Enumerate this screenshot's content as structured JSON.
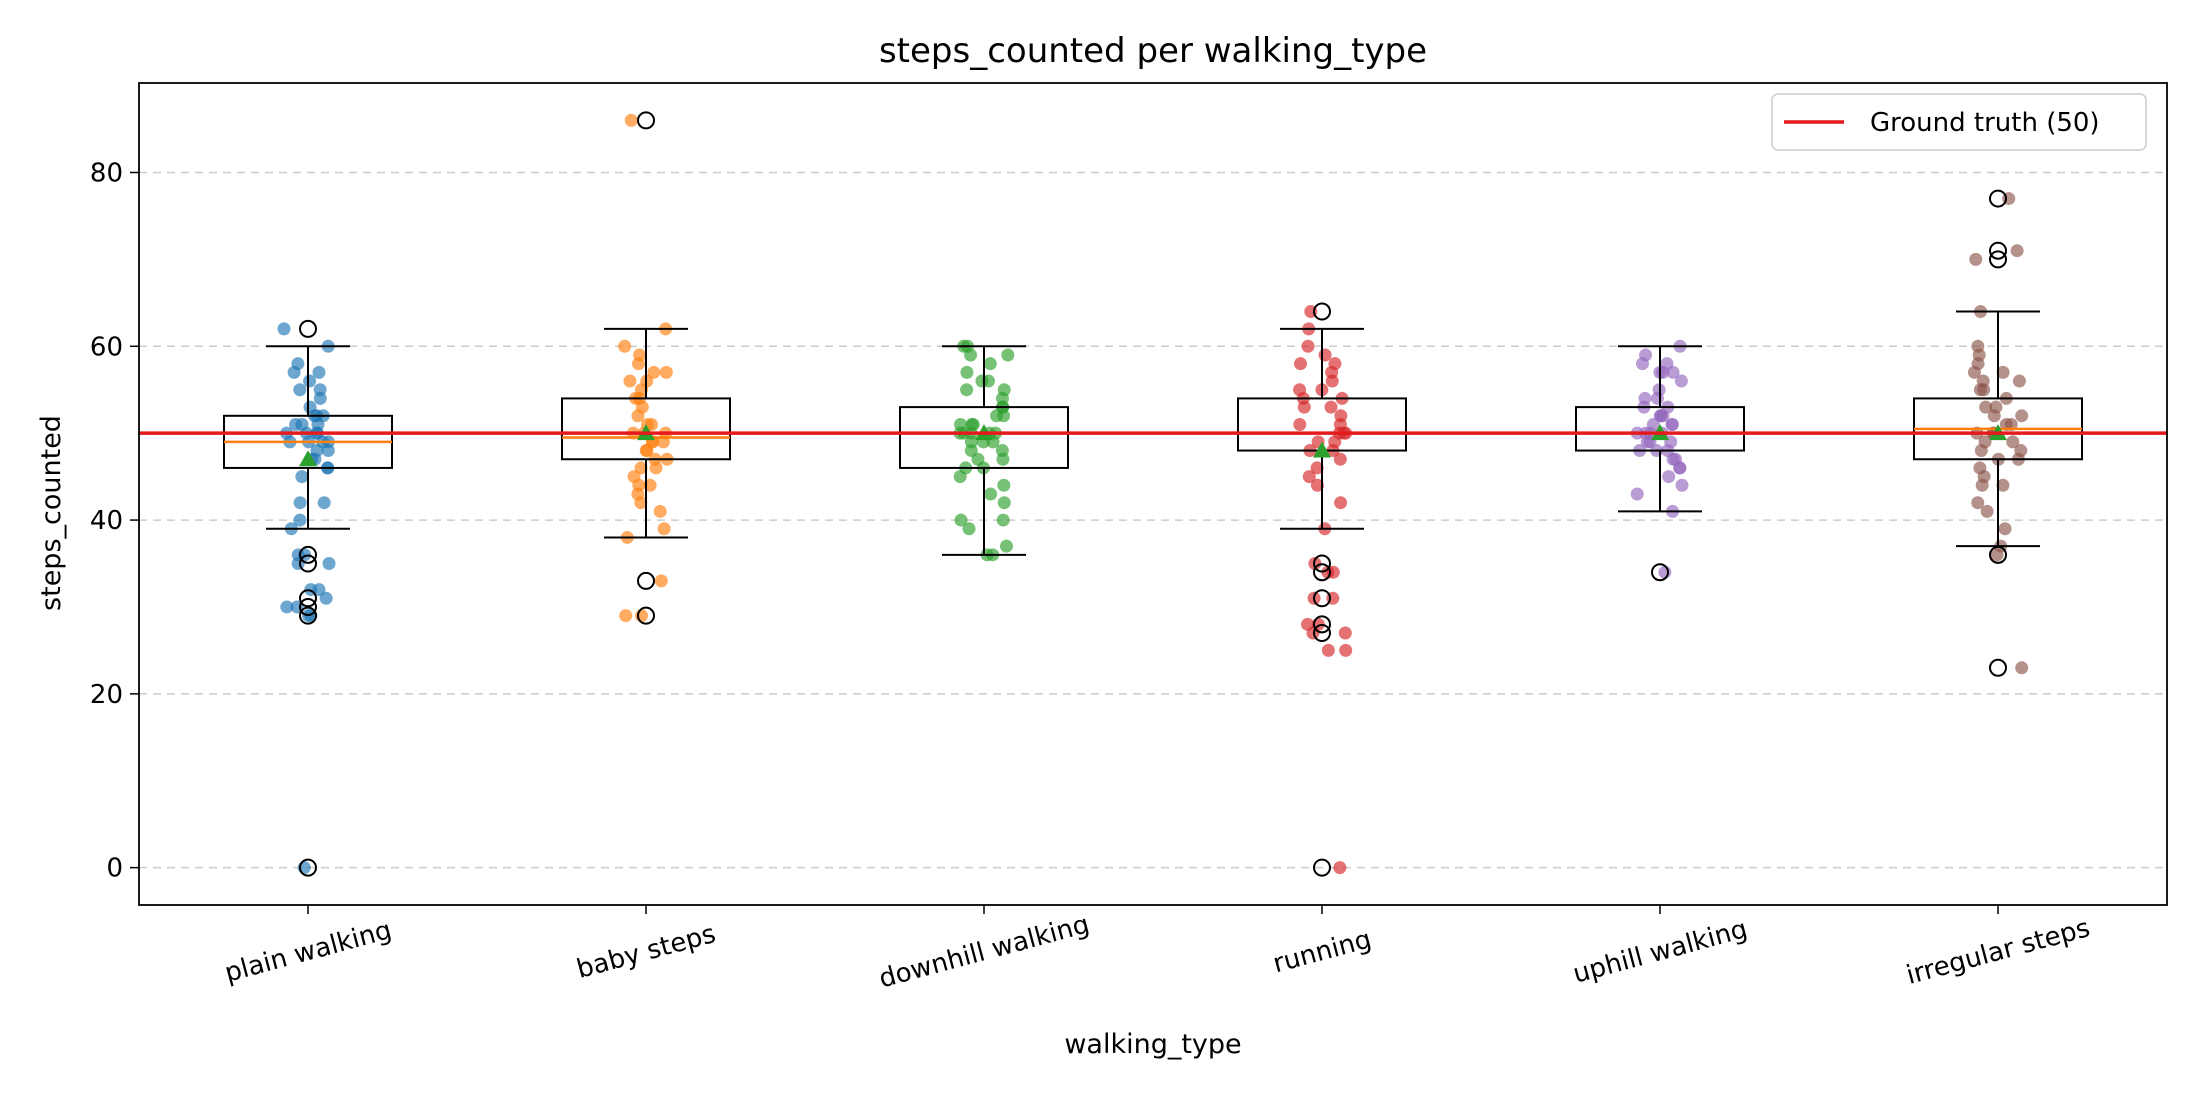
{
  "chart_data": {
    "type": "box",
    "title": "steps_counted per walking_type",
    "xlabel": "walking_type",
    "ylabel": "steps_counted",
    "ylim": [
      -4.3,
      90.3
    ],
    "yticks": [
      0,
      20,
      40,
      60,
      80
    ],
    "grid": "y-dashed",
    "legend_position": "top-right",
    "reference_line": {
      "label": "Ground truth (50)",
      "value": 50,
      "color": "#e41a1c"
    },
    "categories": [
      "plain walking",
      "baby steps",
      "downhill walking",
      "running",
      "uphill walking",
      "irregular steps"
    ],
    "colors": [
      "#1f77b4",
      "#ff7f0e",
      "#2ca02c",
      "#d62728",
      "#9467bd",
      "#8c564b"
    ],
    "boxes": [
      {
        "name": "plain walking",
        "q1": 46,
        "median": 49,
        "q3": 52,
        "whisker_low": 39,
        "whisker_high": 60,
        "mean": 47,
        "outliers": [
          62,
          36,
          35,
          31,
          30,
          29,
          0
        ],
        "points": [
          62,
          60,
          58,
          57,
          57,
          56,
          55,
          55,
          54,
          53,
          52,
          52,
          52,
          51,
          51,
          51,
          50,
          50,
          50,
          50,
          49,
          49,
          49,
          49,
          48,
          48,
          47,
          47,
          46,
          46,
          45,
          42,
          42,
          40,
          39,
          36,
          36,
          35,
          35,
          32,
          32,
          31,
          30,
          30,
          29,
          29,
          0
        ]
      },
      {
        "name": "baby steps",
        "q1": 47,
        "median": 49.5,
        "q3": 54,
        "whisker_low": 38,
        "whisker_high": 62,
        "mean": 50,
        "outliers": [
          86,
          33,
          29
        ],
        "points": [
          86,
          62,
          60,
          59,
          58,
          57,
          57,
          56,
          56,
          55,
          54,
          54,
          53,
          52,
          51,
          51,
          50,
          50,
          50,
          49,
          49,
          49,
          48,
          48,
          47,
          47,
          46,
          46,
          45,
          44,
          44,
          43,
          42,
          41,
          39,
          38,
          33,
          29,
          29
        ]
      },
      {
        "name": "downhill walking",
        "q1": 46,
        "median": 50,
        "q3": 53,
        "whisker_low": 36,
        "whisker_high": 60,
        "mean": 50,
        "outliers": [],
        "points": [
          60,
          60,
          59,
          59,
          58,
          57,
          56,
          56,
          55,
          55,
          54,
          53,
          53,
          52,
          52,
          51,
          51,
          51,
          50,
          50,
          50,
          50,
          50,
          49,
          49,
          49,
          48,
          48,
          47,
          47,
          46,
          46,
          45,
          44,
          43,
          42,
          40,
          40,
          39,
          37,
          36,
          36
        ]
      },
      {
        "name": "running",
        "q1": 48,
        "median": 50,
        "q3": 54,
        "whisker_low": 39,
        "whisker_high": 62,
        "mean": 48,
        "outliers": [
          64,
          35,
          34,
          31,
          28,
          27,
          0
        ],
        "points": [
          64,
          62,
          60,
          59,
          58,
          58,
          57,
          56,
          55,
          55,
          54,
          54,
          53,
          53,
          52,
          51,
          51,
          50,
          50,
          50,
          49,
          49,
          48,
          48,
          47,
          46,
          45,
          44,
          42,
          39,
          35,
          34,
          34,
          31,
          31,
          28,
          28,
          27,
          27,
          25,
          25,
          0
        ]
      },
      {
        "name": "uphill walking",
        "q1": 48,
        "median": 50,
        "q3": 53,
        "whisker_low": 41,
        "whisker_high": 60,
        "mean": 50,
        "outliers": [
          34
        ],
        "points": [
          60,
          59,
          58,
          58,
          57,
          57,
          57,
          56,
          55,
          54,
          54,
          53,
          53,
          52,
          52,
          52,
          51,
          51,
          51,
          50,
          50,
          50,
          50,
          49,
          49,
          49,
          48,
          48,
          48,
          47,
          47,
          46,
          46,
          45,
          44,
          43,
          41,
          34
        ]
      },
      {
        "name": "irregular steps",
        "q1": 47,
        "median": 50.5,
        "q3": 54,
        "whisker_low": 37,
        "whisker_high": 64,
        "mean": 50,
        "outliers": [
          77,
          71,
          70,
          36,
          23
        ],
        "points": [
          77,
          71,
          70,
          64,
          60,
          59,
          58,
          57,
          57,
          56,
          56,
          55,
          55,
          54,
          53,
          53,
          52,
          52,
          51,
          51,
          50,
          50,
          50,
          49,
          49,
          48,
          48,
          47,
          47,
          46,
          45,
          44,
          44,
          42,
          41,
          39,
          37,
          36,
          23
        ]
      }
    ]
  }
}
